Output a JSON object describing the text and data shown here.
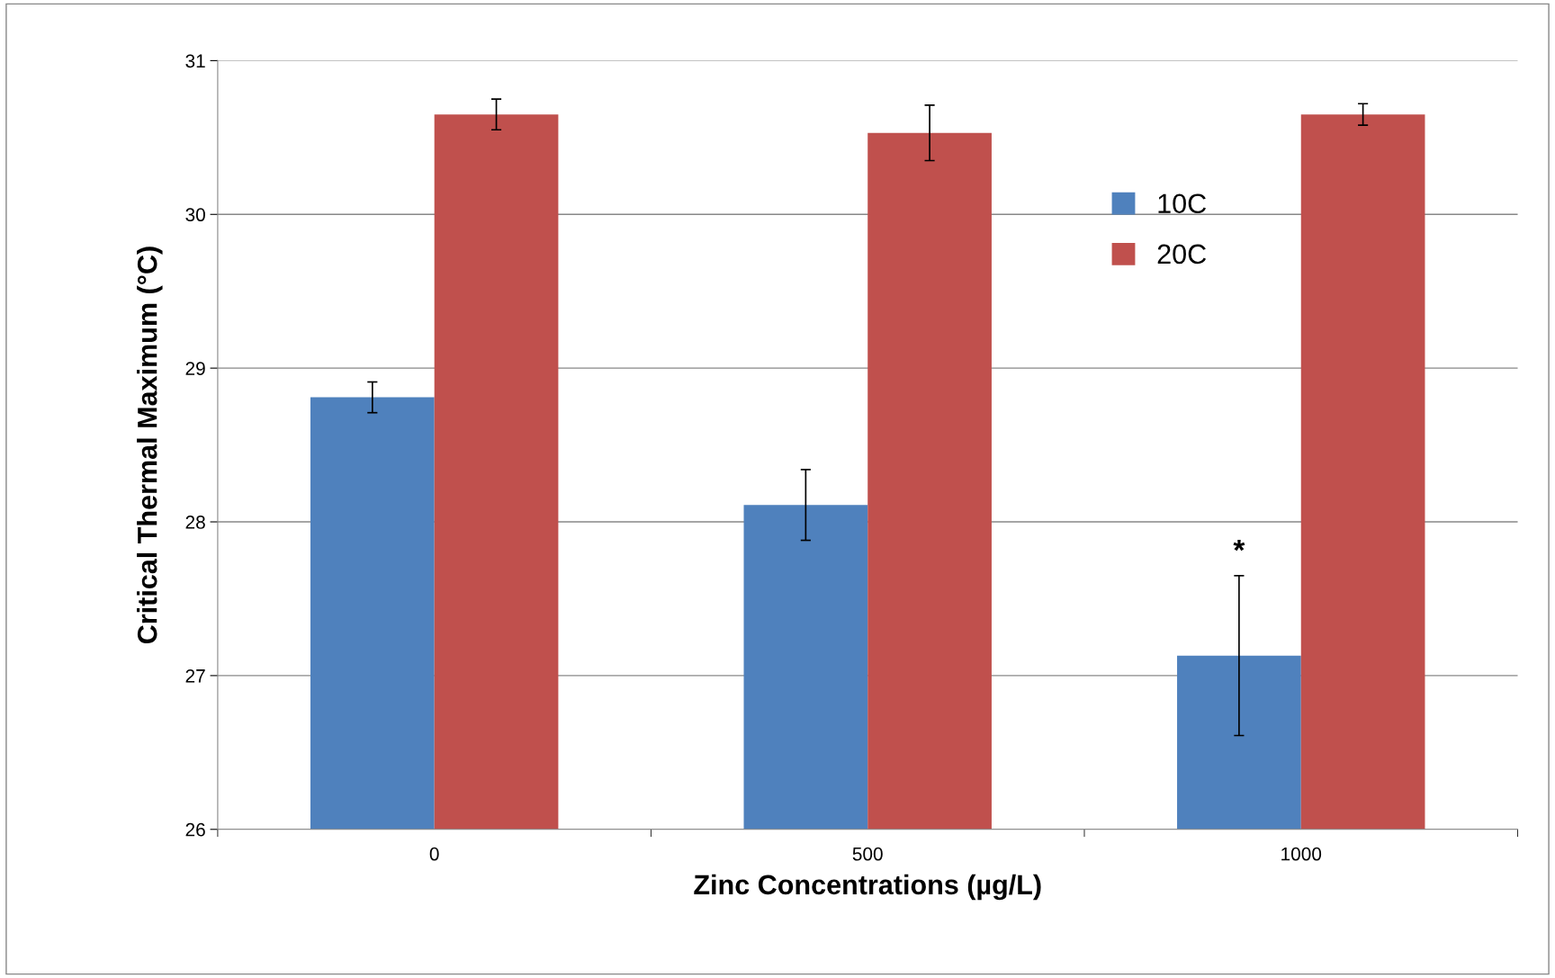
{
  "chart_data": {
    "type": "bar",
    "xlabel": "Zinc Concentrations (µg/L)",
    "ylabel": "Critical Thermal Maximum (°C)",
    "categories": [
      "0",
      "500",
      "1000"
    ],
    "series": [
      {
        "name": "10C",
        "color": "#4f81bd",
        "values": [
          28.81,
          28.11,
          27.13
        ],
        "errors": [
          0.1,
          0.23,
          0.52
        ]
      },
      {
        "name": "20C",
        "color": "#c0504d",
        "values": [
          30.65,
          30.53,
          30.65
        ],
        "errors": [
          0.1,
          0.18,
          0.07
        ]
      }
    ],
    "ylim": [
      26,
      31
    ],
    "yticks": [
      26,
      27,
      28,
      29,
      30,
      31
    ],
    "grid": "y",
    "legend": "top right",
    "annotations": [
      {
        "text": "*",
        "x": "1000",
        "y": 27.8
      }
    ]
  }
}
